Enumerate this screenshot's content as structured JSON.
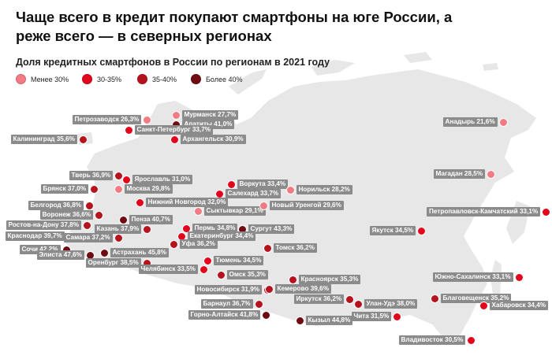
{
  "title": "Чаще всего в кредит покупают смартфоны на юге России, а реже всего — в северных регионах",
  "subtitle": "Доля кредитных смартфонов в России по регионам в 2021 году",
  "legend": [
    {
      "label": "Менее 30%",
      "color": "#f27a83"
    },
    {
      "label": "30-35%",
      "color": "#e3051b"
    },
    {
      "label": "35-40%",
      "color": "#b5131d"
    },
    {
      "label": "Более 40%",
      "color": "#6e0c12"
    }
  ],
  "cities": [
    {
      "text": "Мурманск 27,7%",
      "cat": 0
    },
    {
      "text": "Апатиты 41,0%",
      "cat": 3
    },
    {
      "text": "Калининград 35,6%",
      "cat": 2
    },
    {
      "text": "Петрозаводск 26,3%",
      "cat": 0
    },
    {
      "text": "Санкт-Петербург 33,7%",
      "cat": 1
    },
    {
      "text": "Архангельск 30,9%",
      "cat": 1
    },
    {
      "text": "Тверь 36,9%",
      "cat": 2
    },
    {
      "text": "Ярославль 31,0%",
      "cat": 1
    },
    {
      "text": "Брянск 37,0%",
      "cat": 2
    },
    {
      "text": "Москва 29,8%",
      "cat": 0
    },
    {
      "text": "Воркута 33,4%",
      "cat": 1
    },
    {
      "text": "Салехард 33,7%",
      "cat": 1
    },
    {
      "text": "Норильск 28,2%",
      "cat": 0
    },
    {
      "text": "Белгород 36,8%",
      "cat": 2
    },
    {
      "text": "Воронеж 36,6%",
      "cat": 2
    },
    {
      "text": "Нижний Новгород 32,0%",
      "cat": 1
    },
    {
      "text": "Сыктывкар 29,1%",
      "cat": 0
    },
    {
      "text": "Новый Уренгой 29,6%",
      "cat": 0
    },
    {
      "text": "Пенза 40,7%",
      "cat": 3
    },
    {
      "text": "Ростов-на-Дону 37,8%",
      "cat": 2
    },
    {
      "text": "Казань 37,9%",
      "cat": 2
    },
    {
      "text": "Пермь 34,8%",
      "cat": 1
    },
    {
      "text": "Сургут 43,3%",
      "cat": 3
    },
    {
      "text": "Краснодар 39,7%",
      "cat": 2
    },
    {
      "text": "Самара 37,2%",
      "cat": 2
    },
    {
      "text": "Екатеринбург 34,4%",
      "cat": 1
    },
    {
      "text": "Сочи 42,2%",
      "cat": 3
    },
    {
      "text": "Уфа 36,2%",
      "cat": 2
    },
    {
      "text": "Элиста 47,6%",
      "cat": 3
    },
    {
      "text": "Астрахань 45,8%",
      "cat": 3
    },
    {
      "text": "Оренбург 38,5%",
      "cat": 2
    },
    {
      "text": "Челябинск 33,5%",
      "cat": 1
    },
    {
      "text": "Тюмень 34,5%",
      "cat": 1
    },
    {
      "text": "Томск 36,2%",
      "cat": 2
    },
    {
      "text": "Омск 35,3%",
      "cat": 2
    },
    {
      "text": "Красноярск 35,3%",
      "cat": 2
    },
    {
      "text": "Новосибирск 31,9%",
      "cat": 1
    },
    {
      "text": "Кемерово 39,6%",
      "cat": 2
    },
    {
      "text": "Барнаул 36,7%",
      "cat": 2
    },
    {
      "text": "Иркутск 36,2%",
      "cat": 2
    },
    {
      "text": "Улан-Удэ 38,0%",
      "cat": 2
    },
    {
      "text": "Горно-Алтайск 41,8%",
      "cat": 3
    },
    {
      "text": "Чита 31,5%",
      "cat": 1
    },
    {
      "text": "Кызыл 44,8%",
      "cat": 3
    },
    {
      "text": "Анадырь 21,6%",
      "cat": 0
    },
    {
      "text": "Магадан 28,5%",
      "cat": 0
    },
    {
      "text": "Петропавловск-Камчатский 33,1%",
      "cat": 1
    },
    {
      "text": "Якутск 34,5%",
      "cat": 1
    },
    {
      "text": "Южно-Сахалинск 33,1%",
      "cat": 1
    },
    {
      "text": "Благовещенск 35,2%",
      "cat": 2
    },
    {
      "text": "Хабаровск 34,4%",
      "cat": 1
    },
    {
      "text": "Владивосток 30,5%",
      "cat": 1
    }
  ]
}
